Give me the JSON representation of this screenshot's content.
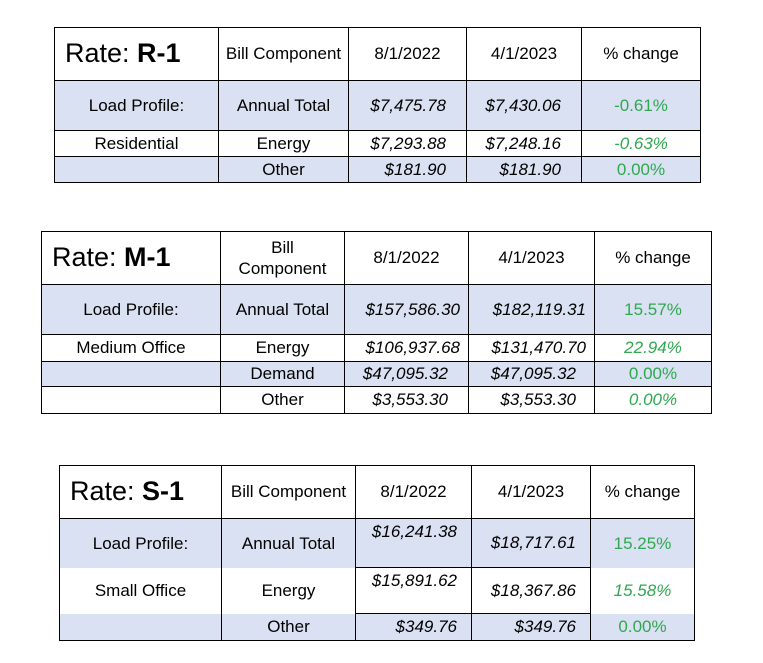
{
  "tables": [
    {
      "rate_prefix": "Rate: ",
      "rate_code": "R-1",
      "headers": {
        "component": "Bill Component",
        "date1": "8/1/2022",
        "date2": "4/1/2023",
        "change": "% change"
      },
      "profile_label": "Load Profile:",
      "profile_value": "Residential",
      "rows": [
        {
          "component": "Annual Total",
          "v1": "$7,475.78",
          "v2": "$7,430.06",
          "change": "-0.61%"
        },
        {
          "component": "Energy",
          "v1": "$7,293.88",
          "v2": "$7,248.16",
          "change": "-0.63%"
        },
        {
          "component": "Other",
          "v1": "$181.90",
          "v2": "$181.90",
          "change": "0.00%"
        }
      ]
    },
    {
      "rate_prefix": "Rate: ",
      "rate_code": "M-1",
      "headers": {
        "component": "Bill Component",
        "date1": "8/1/2022",
        "date2": "4/1/2023",
        "change": "% change"
      },
      "profile_label": "Load Profile:",
      "profile_value": "Medium Office",
      "rows": [
        {
          "component": "Annual Total",
          "v1": "$157,586.30",
          "v2": "$182,119.31",
          "change": "15.57%"
        },
        {
          "component": "Energy",
          "v1": "$106,937.68",
          "v2": "$131,470.70",
          "change": "22.94%"
        },
        {
          "component": "Demand",
          "v1": "$47,095.32",
          "v2": "$47,095.32",
          "change": "0.00%"
        },
        {
          "component": "Other",
          "v1": "$3,553.30",
          "v2": "$3,553.30",
          "change": "0.00%"
        }
      ]
    },
    {
      "rate_prefix": "Rate: ",
      "rate_code": "S-1",
      "headers": {
        "component": "Bill Component",
        "date1": "8/1/2022",
        "date2": "4/1/2023",
        "change": "% change"
      },
      "profile_label": "Load Profile:",
      "profile_value": "Small Office",
      "rows": [
        {
          "component": "Annual Total",
          "v1": "$16,241.38",
          "v2": "$18,717.61",
          "change": "15.25%"
        },
        {
          "component": "Energy",
          "v1": "$15,891.62",
          "v2": "$18,367.86",
          "change": "15.58%"
        },
        {
          "component": "Other",
          "v1": "$349.76",
          "v2": "$349.76",
          "change": "0.00%"
        }
      ]
    }
  ],
  "colors": {
    "shade": "#d9e1f2",
    "positive": "#2fa84f",
    "border": "#000000"
  }
}
